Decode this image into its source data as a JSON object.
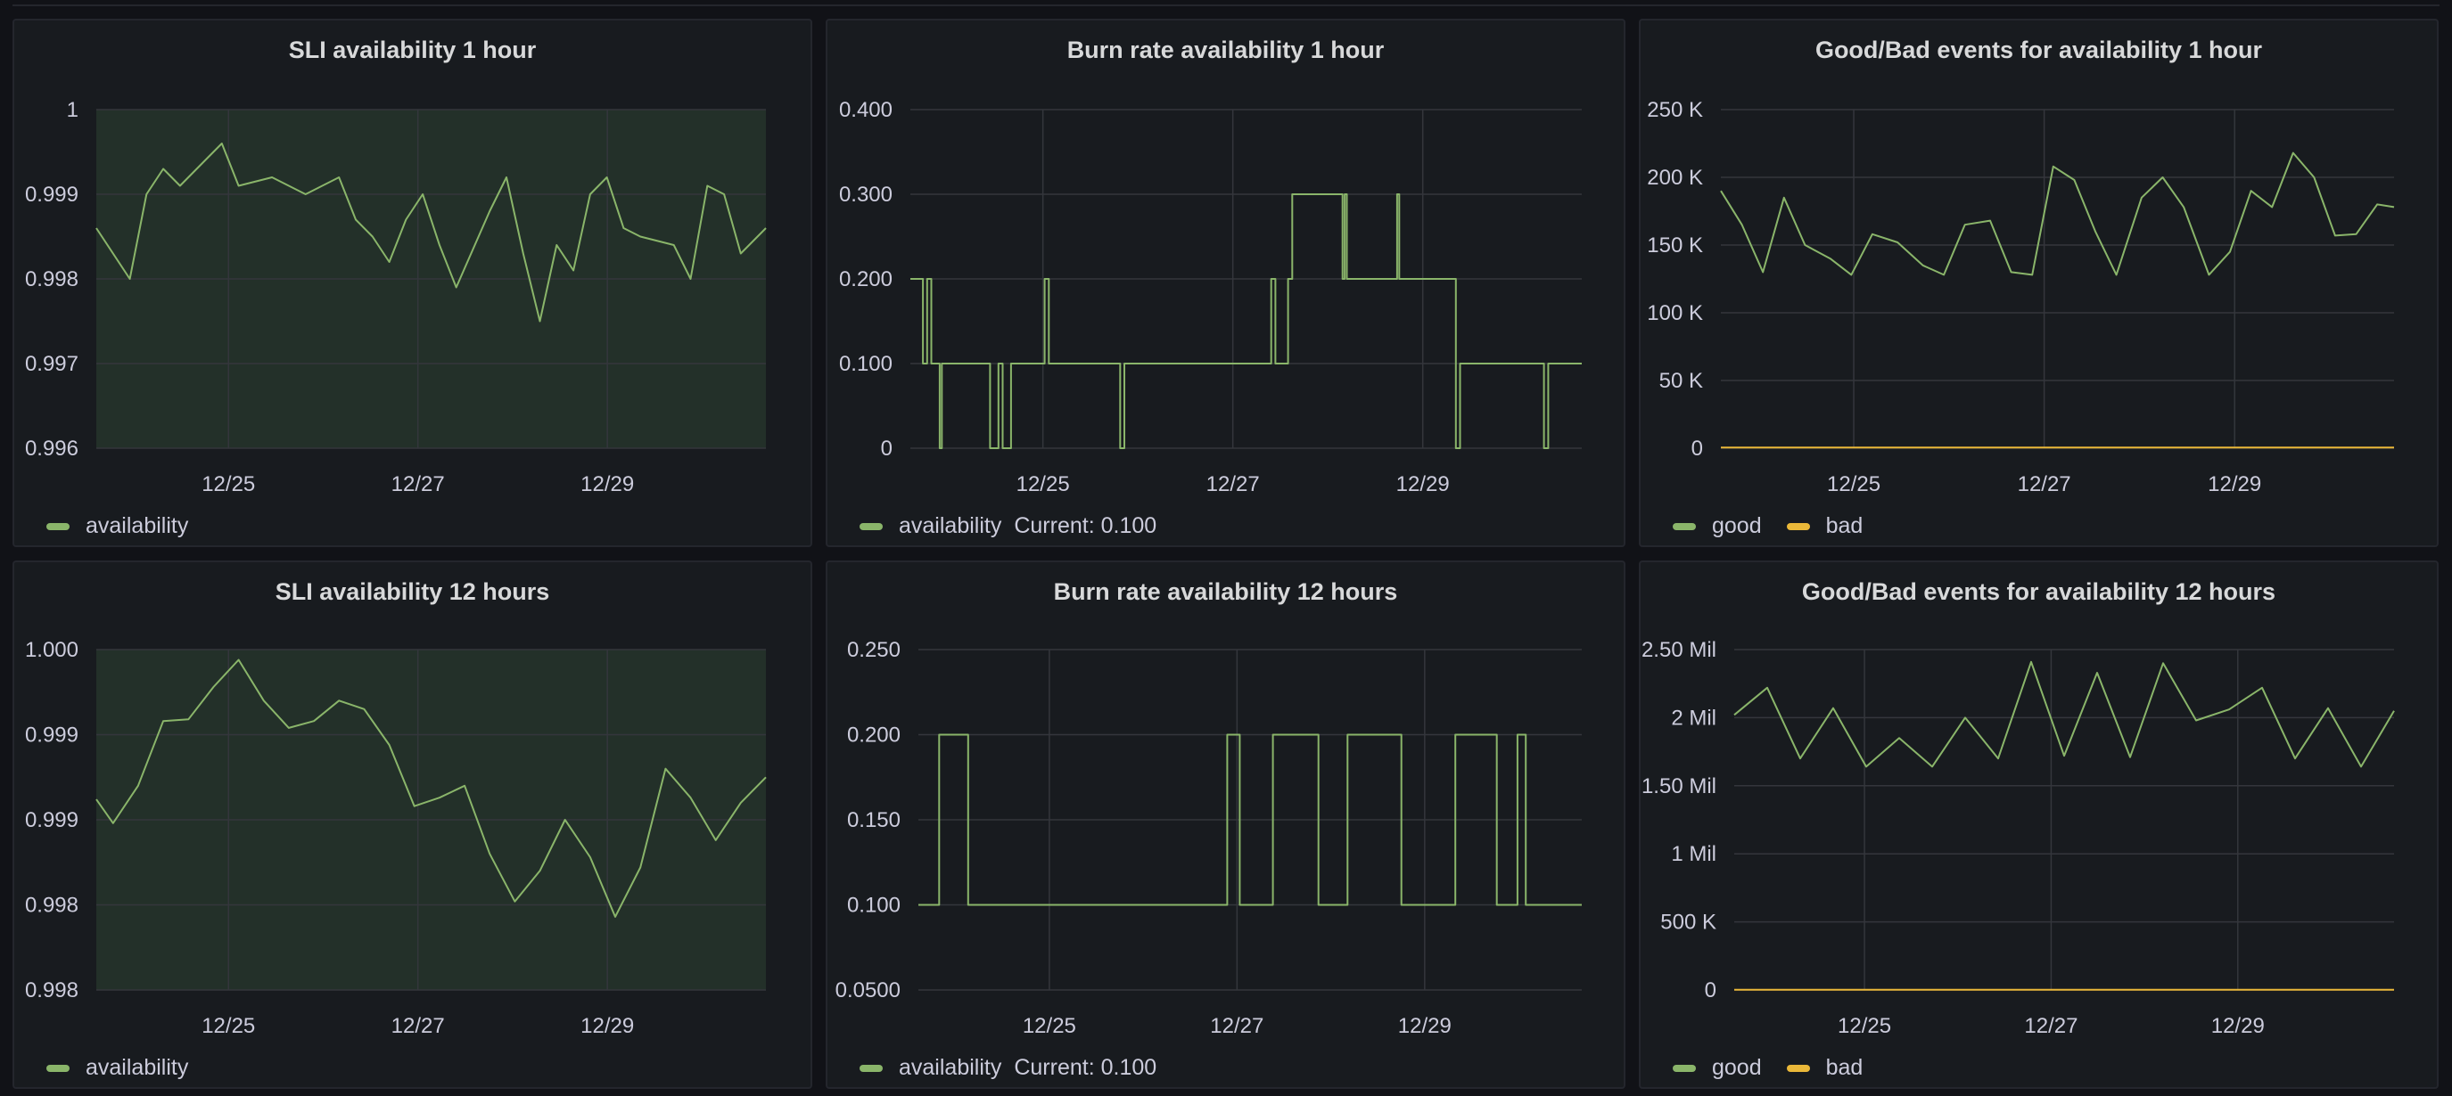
{
  "colors": {
    "green": "#8ab56a",
    "yellow": "#eab839",
    "area_fill": "rgba(115,191,105,0.13)"
  },
  "panels": [
    {
      "title": "SLI availability 1 hour",
      "legend": [
        {
          "name": "availability",
          "color": "#8ab56a"
        }
      ],
      "current": ""
    },
    {
      "title": "Burn rate availability 1 hour",
      "legend": [
        {
          "name": "availability",
          "color": "#8ab56a"
        }
      ],
      "current": "Current: 0.100"
    },
    {
      "title": "Good/Bad events for availability 1 hour",
      "legend": [
        {
          "name": "good",
          "color": "#8ab56a"
        },
        {
          "name": "bad",
          "color": "#eab839"
        }
      ],
      "current": ""
    },
    {
      "title": "SLI availability 12 hours",
      "legend": [
        {
          "name": "availability",
          "color": "#8ab56a"
        }
      ],
      "current": ""
    },
    {
      "title": "Burn rate availability 12 hours",
      "legend": [
        {
          "name": "availability",
          "color": "#8ab56a"
        }
      ],
      "current": "Current: 0.100"
    },
    {
      "title": "Good/Bad events for availability 12 hours",
      "legend": [
        {
          "name": "good",
          "color": "#8ab56a"
        },
        {
          "name": "bad",
          "color": "#eab839"
        }
      ],
      "current": ""
    }
  ],
  "chart_data": [
    {
      "type": "area",
      "title": "SLI availability 1 hour",
      "x_range": [
        "12/23 22:00",
        "12/30 14:00"
      ],
      "x_tick_labels": [
        "12/25",
        "12/27",
        "12/29"
      ],
      "y_tick_labels": [
        "1",
        "0.999",
        "0.998",
        "0.997",
        "0.996"
      ],
      "ylim": [
        0.996,
        1.0
      ],
      "grid": true,
      "legend_placement": "bottom-left",
      "series": [
        {
          "name": "availability",
          "color": "#8ab56a",
          "x": [
            "12/23 22:00",
            "12/24 06:00",
            "12/24 10:00",
            "12/24 14:00",
            "12/24 18:00",
            "12/25 00:00",
            "12/25 04:00",
            "12/25 08:00",
            "12/25 16:00",
            "12/26 00:00",
            "12/26 08:00",
            "12/26 12:00",
            "12/26 16:00",
            "12/26 20:00",
            "12/27 00:00",
            "12/27 04:00",
            "12/27 08:00",
            "12/27 12:00",
            "12/27 20:00",
            "12/28 00:00",
            "12/28 04:00",
            "12/28 08:00",
            "12/28 12:00",
            "12/28 16:00",
            "12/28 20:00",
            "12/29 00:00",
            "12/29 04:00",
            "12/29 08:00",
            "12/29 16:00",
            "12/29 20:00",
            "12/30 00:00",
            "12/30 04:00",
            "12/30 08:00",
            "12/30 14:00"
          ],
          "y": [
            0.9986,
            0.998,
            0.999,
            0.9993,
            0.9991,
            0.9994,
            0.9996,
            0.9991,
            0.9992,
            0.999,
            0.9992,
            0.9987,
            0.9985,
            0.9982,
            0.9987,
            0.999,
            0.9984,
            0.9979,
            0.9988,
            0.9992,
            0.9983,
            0.9975,
            0.9984,
            0.9981,
            0.999,
            0.9992,
            0.9986,
            0.9985,
            0.9984,
            0.998,
            0.9991,
            0.999,
            0.9983,
            0.9986
          ]
        }
      ]
    },
    {
      "type": "line",
      "title": "Burn rate availability 1 hour",
      "x_range": [
        "12/23 22:00",
        "12/30 14:00"
      ],
      "x_tick_labels": [
        "12/25",
        "12/27",
        "12/29"
      ],
      "y_tick_labels": [
        "0.400",
        "0.300",
        "0.200",
        "0.100",
        "0"
      ],
      "ylim": [
        0,
        0.4
      ],
      "grid": true,
      "legend_placement": "bottom-left",
      "series": [
        {
          "name": "availability",
          "color": "#8ab56a",
          "x": [
            "12/23 22:00",
            "12/24 01:00",
            "12/24 02:00",
            "12/24 03:00",
            "12/24 05:00",
            "12/24 05:30",
            "12/24 17:00",
            "12/24 19:00",
            "12/24 20:00",
            "12/24 22:00",
            "12/25 06:00",
            "12/25 07:00",
            "12/26 00:00",
            "12/26 01:00",
            "12/27 12:00",
            "12/27 13:00",
            "12/27 16:00",
            "12/27 17:00",
            "12/28 05:00",
            "12/28 05:30",
            "12/28 06:00",
            "12/28 18:00",
            "12/28 18:30",
            "12/28 19:00",
            "12/29 08:00",
            "12/29 09:00",
            "12/30 05:00",
            "12/30 06:00",
            "12/30 14:00"
          ],
          "y": [
            0.2,
            0.1,
            0.2,
            0.1,
            0.0,
            0.1,
            0.0,
            0.1,
            0.0,
            0.1,
            0.2,
            0.1,
            0.0,
            0.1,
            0.2,
            0.1,
            0.2,
            0.3,
            0.2,
            0.3,
            0.2,
            0.3,
            0.2,
            0.2,
            0.0,
            0.1,
            0.0,
            0.1,
            0.1
          ]
        }
      ]
    },
    {
      "type": "line",
      "title": "Good/Bad events for availability 1 hour",
      "x_range": [
        "12/23 22:00",
        "12/30 14:00"
      ],
      "x_tick_labels": [
        "12/25",
        "12/27",
        "12/29"
      ],
      "y_tick_labels": [
        "250 K",
        "200 K",
        "150 K",
        "100 K",
        "50 K",
        "0"
      ],
      "ylim": [
        0,
        250000
      ],
      "grid": true,
      "legend_placement": "bottom-left",
      "series": [
        {
          "name": "good",
          "color": "#8ab56a",
          "x": [
            "12/23 22:00",
            "12/24 03:00",
            "12/24 08:00",
            "12/24 13:00",
            "12/24 18:00",
            "12/25 00:00",
            "12/25 05:00",
            "12/25 10:00",
            "12/25 16:00",
            "12/25 22:00",
            "12/26 03:00",
            "12/26 08:00",
            "12/26 14:00",
            "12/26 19:00",
            "12/27 00:00",
            "12/27 05:00",
            "12/27 10:00",
            "12/27 15:00",
            "12/27 20:00",
            "12/28 02:00",
            "12/28 07:00",
            "12/28 12:00",
            "12/28 18:00",
            "12/28 23:00",
            "12/29 04:00",
            "12/29 09:00",
            "12/29 14:00",
            "12/29 19:00",
            "12/30 00:00",
            "12/30 05:00",
            "12/30 10:00",
            "12/30 14:00"
          ],
          "y": [
            190000,
            165000,
            130000,
            185000,
            150000,
            140000,
            128000,
            158000,
            152000,
            135000,
            128000,
            165000,
            168000,
            130000,
            128000,
            208000,
            198000,
            160000,
            128000,
            185000,
            200000,
            178000,
            128000,
            145000,
            190000,
            178000,
            218000,
            200000,
            157000,
            158000,
            180000,
            178000
          ]
        },
        {
          "name": "bad",
          "color": "#eab839",
          "x": [
            "12/23 22:00",
            "12/30 14:00"
          ],
          "y": [
            500,
            500
          ]
        }
      ]
    },
    {
      "type": "area",
      "title": "SLI availability 12 hours",
      "x_range": [
        "12/23 22:00",
        "12/30 14:00"
      ],
      "x_tick_labels": [
        "12/25",
        "12/27",
        "12/29"
      ],
      "y_tick_labels": [
        "1.000",
        "0.999",
        "0.999",
        "0.998",
        "0.998"
      ],
      "ylim": [
        0.998,
        1.0
      ],
      "grid": true,
      "legend_placement": "bottom-left",
      "series": [
        {
          "name": "availability",
          "color": "#8ab56a",
          "x": [
            "12/23 22:00",
            "12/24 02:00",
            "12/24 08:00",
            "12/24 14:00",
            "12/24 20:00",
            "12/25 02:00",
            "12/25 08:00",
            "12/25 14:00",
            "12/25 20:00",
            "12/26 02:00",
            "12/26 08:00",
            "12/26 14:00",
            "12/26 20:00",
            "12/27 02:00",
            "12/27 08:00",
            "12/27 14:00",
            "12/27 20:00",
            "12/28 02:00",
            "12/28 08:00",
            "12/28 14:00",
            "12/28 20:00",
            "12/29 02:00",
            "12/29 08:00",
            "12/29 14:00",
            "12/29 20:00",
            "12/30 02:00",
            "12/30 08:00",
            "12/30 14:00"
          ],
          "y": [
            0.99912,
            0.99898,
            0.9992,
            0.99958,
            0.99959,
            0.99978,
            0.99994,
            0.9997,
            0.99954,
            0.99958,
            0.9997,
            0.99965,
            0.99944,
            0.99908,
            0.99913,
            0.9992,
            0.9988,
            0.99852,
            0.9987,
            0.999,
            0.99878,
            0.99843,
            0.99872,
            0.9993,
            0.99913,
            0.99888,
            0.9991,
            0.99925
          ]
        }
      ]
    },
    {
      "type": "line",
      "title": "Burn rate availability 12 hours",
      "x_range": [
        "12/23 22:00",
        "12/30 14:00"
      ],
      "x_tick_labels": [
        "12/25",
        "12/27",
        "12/29"
      ],
      "y_tick_labels": [
        "0.250",
        "0.200",
        "0.150",
        "0.100",
        "0.0500"
      ],
      "ylim": [
        0.05,
        0.25
      ],
      "grid": true,
      "legend_placement": "bottom-left",
      "series": [
        {
          "name": "availability",
          "color": "#8ab56a",
          "x": [
            "12/23 22:00",
            "12/24 02:00",
            "12/24 03:00",
            "12/24 09:00",
            "12/24 10:00",
            "12/27 00:00",
            "12/27 00:30",
            "12/27 03:00",
            "12/27 03:30",
            "12/27 11:00",
            "12/27 11:30",
            "12/27 22:00",
            "12/27 22:30",
            "12/28 05:00",
            "12/28 05:30",
            "12/28 18:00",
            "12/28 18:30",
            "12/29 07:00",
            "12/29 07:30",
            "12/29 17:00",
            "12/29 17:30",
            "12/29 22:00",
            "12/29 22:30",
            "12/30 00:00",
            "12/30 00:30",
            "12/30 14:00"
          ],
          "y": [
            0.1,
            0.1,
            0.2,
            0.2,
            0.1,
            0.1,
            0.2,
            0.2,
            0.1,
            0.1,
            0.2,
            0.2,
            0.1,
            0.1,
            0.2,
            0.2,
            0.1,
            0.1,
            0.2,
            0.2,
            0.1,
            0.1,
            0.2,
            0.2,
            0.1,
            0.1
          ]
        }
      ]
    },
    {
      "type": "line",
      "title": "Good/Bad events for availability 12 hours",
      "x_range": [
        "12/23 22:00",
        "12/30 14:00"
      ],
      "x_tick_labels": [
        "12/25",
        "12/27",
        "12/29"
      ],
      "y_tick_labels": [
        "2.50 Mil",
        "2 Mil",
        "1.50 Mil",
        "1 Mil",
        "500 K",
        "0"
      ],
      "ylim": [
        0,
        2500000
      ],
      "grid": true,
      "legend_placement": "bottom-left",
      "series": [
        {
          "name": "good",
          "color": "#8ab56a",
          "x": [
            "12/23 22:00",
            "12/24 06:00",
            "12/24 14:00",
            "12/24 22:00",
            "12/25 06:00",
            "12/25 14:00",
            "12/25 22:00",
            "12/26 06:00",
            "12/26 14:00",
            "12/26 22:00",
            "12/27 06:00",
            "12/27 14:00",
            "12/27 22:00",
            "12/28 06:00",
            "12/28 14:00",
            "12/28 22:00",
            "12/29 06:00",
            "12/29 14:00",
            "12/29 22:00",
            "12/30 06:00",
            "12/30 14:00"
          ],
          "y": [
            2020000,
            2220000,
            1700000,
            2070000,
            1640000,
            1850000,
            1640000,
            2000000,
            1700000,
            2410000,
            1720000,
            2330000,
            1710000,
            2400000,
            1980000,
            2060000,
            2220000,
            1700000,
            2070000,
            1640000,
            2050000
          ]
        },
        {
          "name": "bad",
          "color": "#eab839",
          "x": [
            "12/23 22:00",
            "12/30 14:00"
          ],
          "y": [
            2000,
            2000
          ]
        }
      ]
    }
  ]
}
